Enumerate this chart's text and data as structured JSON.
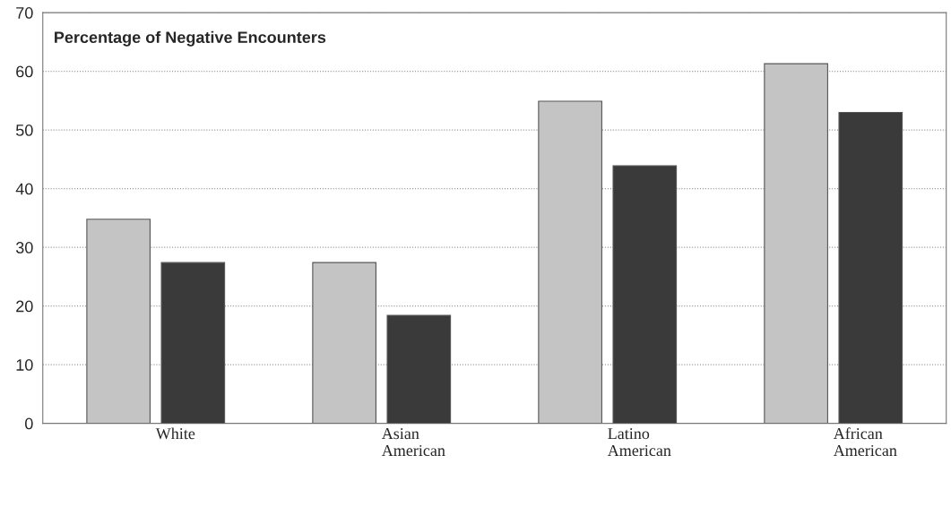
{
  "chart_data": {
    "type": "bar",
    "title": "Percentage of Negative Encounters",
    "categories": [
      "White",
      "Asian\nAmerican",
      "Latino\nAmerican",
      "African\nAmerican"
    ],
    "series": [
      {
        "color": "#c4c4c4",
        "values": [
          34.8,
          27.4,
          54.9,
          61.3
        ]
      },
      {
        "color": "#3a3a3a",
        "values": [
          27.4,
          18.4,
          43.9,
          53.0
        ]
      }
    ],
    "ylim": [
      0,
      70
    ],
    "yticks": [
      0,
      10,
      20,
      30,
      40,
      50,
      60,
      70
    ],
    "grid": "y",
    "legend": false
  }
}
